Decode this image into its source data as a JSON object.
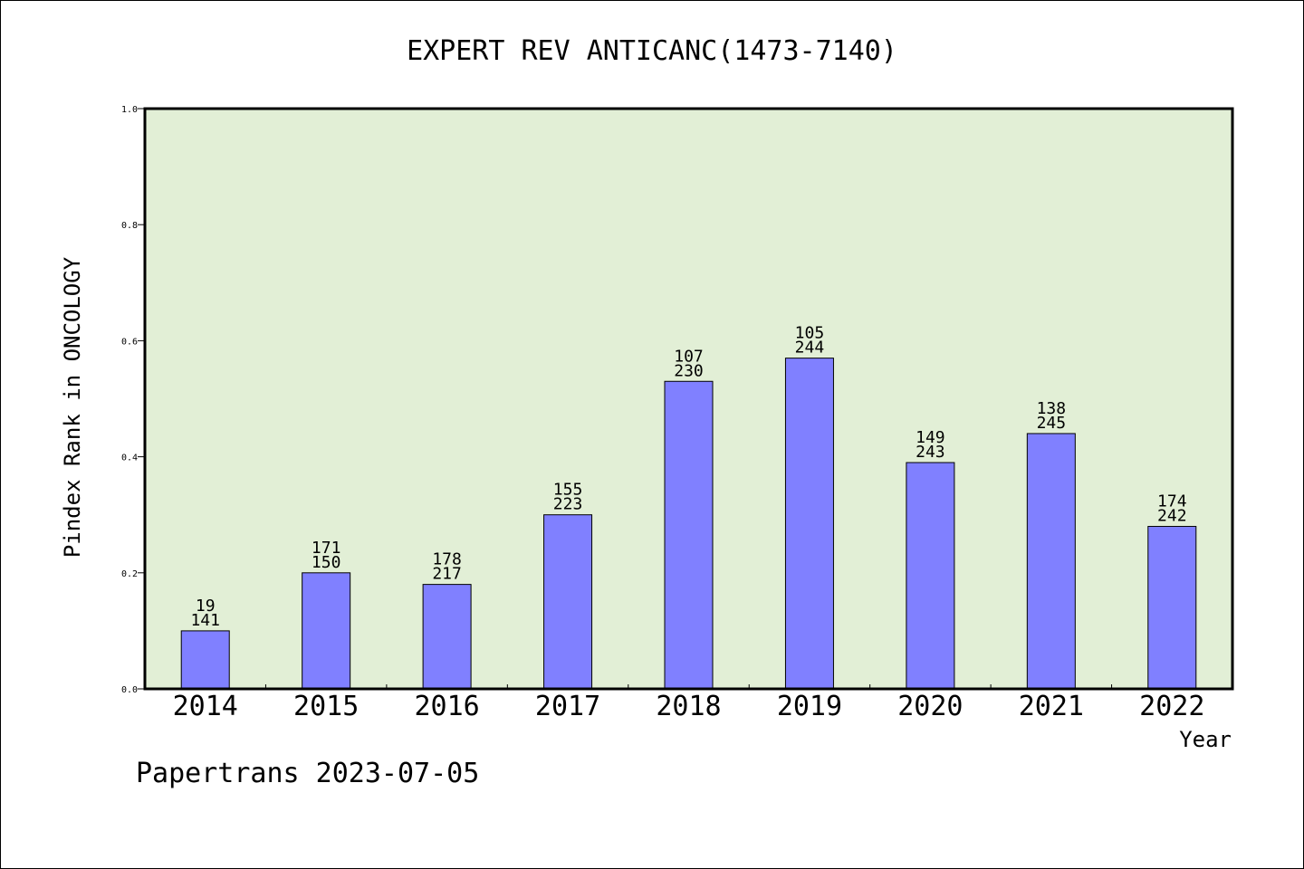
{
  "chart_data": {
    "type": "bar",
    "title": "EXPERT REV ANTICANC(1473-7140)",
    "xlabel": "Year",
    "ylabel": "Pindex Rank in ONCOLOGY",
    "ylim": [
      0.0,
      1.0
    ],
    "yticks": [
      "0.0",
      "0.2",
      "0.4",
      "0.6",
      "0.8",
      "1.0"
    ],
    "categories": [
      "2014",
      "2015",
      "2016",
      "2017",
      "2018",
      "2019",
      "2020",
      "2021",
      "2022"
    ],
    "values": [
      0.1,
      0.2,
      0.18,
      0.3,
      0.53,
      0.57,
      0.39,
      0.44,
      0.28
    ],
    "labels_top": [
      "19",
      "171",
      "178",
      "155",
      "107",
      "105",
      "149",
      "138",
      "174"
    ],
    "labels_bottom": [
      "141",
      "150",
      "217",
      "223",
      "230",
      "244",
      "243",
      "245",
      "242"
    ],
    "colors": {
      "plot_bg": "#e2efd6",
      "bar": "#8080ff",
      "bar_edge": "#000000"
    },
    "grid": false,
    "legend": "none"
  },
  "footer": "Papertrans 2023-07-05"
}
